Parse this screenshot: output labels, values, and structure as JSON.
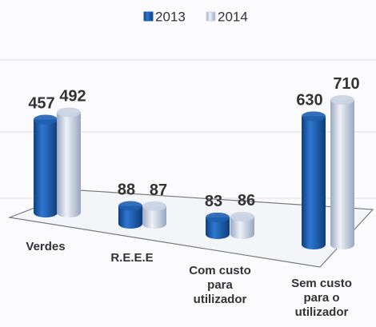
{
  "chart_data": {
    "type": "bar",
    "categories": [
      "Verdes",
      "R.E.E.E",
      "Com custo para utilizador",
      "Sem custo para o utilizador"
    ],
    "series": [
      {
        "name": "2013",
        "color": "#1f5fb0",
        "values": [
          457,
          88,
          83,
          630
        ]
      },
      {
        "name": "2014",
        "color": "#c9d3e3",
        "values": [
          492,
          87,
          86,
          710
        ]
      }
    ],
    "legend": "top"
  }
}
